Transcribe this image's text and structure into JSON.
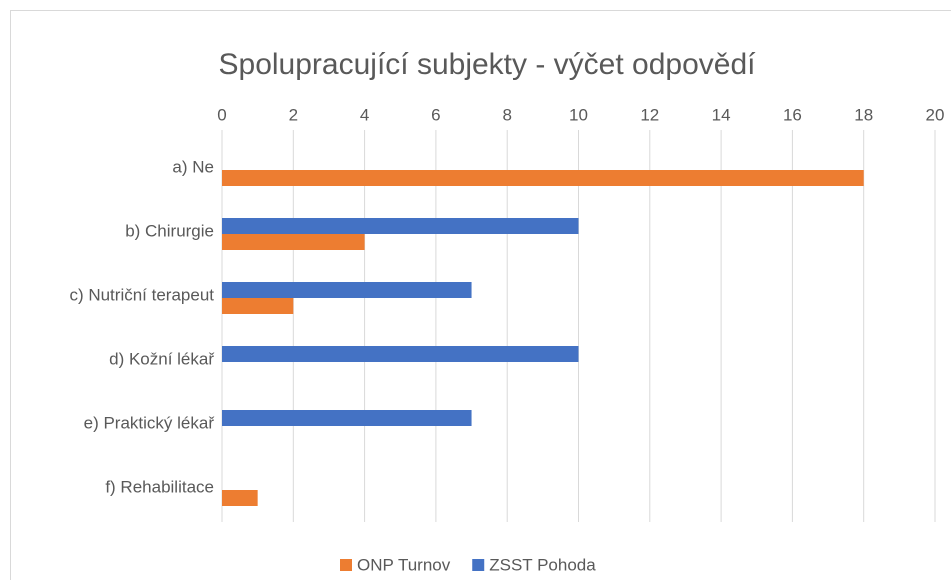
{
  "chart_data": {
    "type": "bar",
    "orientation": "horizontal",
    "title": "Spolupracující subjekty - výčet odpovědí",
    "categories": [
      "a) Ne",
      "b) Chirurgie",
      "c) Nutriční terapeut",
      "d) Kožní lékař",
      "e) Praktický lékař",
      "f) Rehabilitace"
    ],
    "series": [
      {
        "name": "ONP Turnov",
        "color": "#ed7d31",
        "values": [
          18,
          4,
          2,
          0,
          0,
          1
        ]
      },
      {
        "name": "ZSST Pohoda",
        "color": "#4472c4",
        "values": [
          0,
          10,
          7,
          10,
          7,
          0
        ]
      }
    ],
    "xlim": [
      0,
      20
    ],
    "xticks": [
      0,
      2,
      4,
      6,
      8,
      10,
      12,
      14,
      16,
      18,
      20
    ],
    "grid": true,
    "legend": "bottom"
  }
}
